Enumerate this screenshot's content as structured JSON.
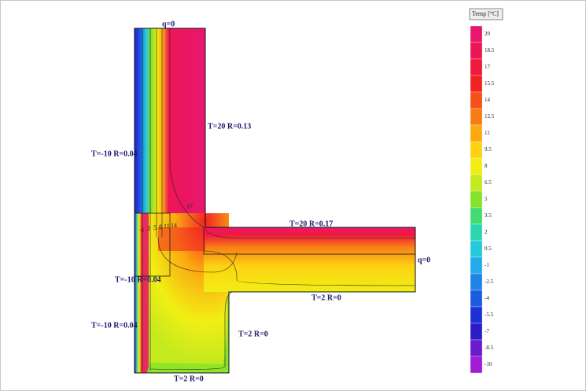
{
  "boundary_labels": [
    "q=0",
    "T=20 R=0.13",
    "T=-10 R=0.04",
    "T=20 R=0.17",
    "q=0",
    "T=-10 R=0.04",
    "T=2 R=0",
    "T=2 R=0",
    "T=-10 R=0.04",
    "T=2 R=0"
  ],
  "isotherm_labels": [
    "17",
    "-1",
    "2",
    "5",
    "8",
    "11",
    "14"
  ],
  "legend": {
    "title": "Temp [°C]",
    "entries": [
      {
        "value": 20,
        "color": "#e8176e"
      },
      {
        "value": 18.5,
        "color": "#ec1656"
      },
      {
        "value": 17,
        "color": "#f01a3c"
      },
      {
        "value": 15.5,
        "color": "#f22222"
      },
      {
        "value": 14,
        "color": "#f5501a"
      },
      {
        "value": 12.5,
        "color": "#f87c16"
      },
      {
        "value": 11,
        "color": "#fba812"
      },
      {
        "value": 9.5,
        "color": "#fcd212"
      },
      {
        "value": 8,
        "color": "#f2ee14"
      },
      {
        "value": 6.5,
        "color": "#c2ea1e"
      },
      {
        "value": 5,
        "color": "#86e22c"
      },
      {
        "value": 3.5,
        "color": "#44dc70"
      },
      {
        "value": 2,
        "color": "#2cd6b0"
      },
      {
        "value": 0.5,
        "color": "#26c8dc"
      },
      {
        "value": -1,
        "color": "#22aaea"
      },
      {
        "value": -2.5,
        "color": "#1f84e6"
      },
      {
        "value": -4,
        "color": "#1c5ae0"
      },
      {
        "value": -5.5,
        "color": "#1c32d6"
      },
      {
        "value": -7,
        "color": "#2c1cc8"
      },
      {
        "value": -8.5,
        "color": "#6a1ccc"
      },
      {
        "value": -10,
        "color": "#a01cd8"
      }
    ]
  }
}
